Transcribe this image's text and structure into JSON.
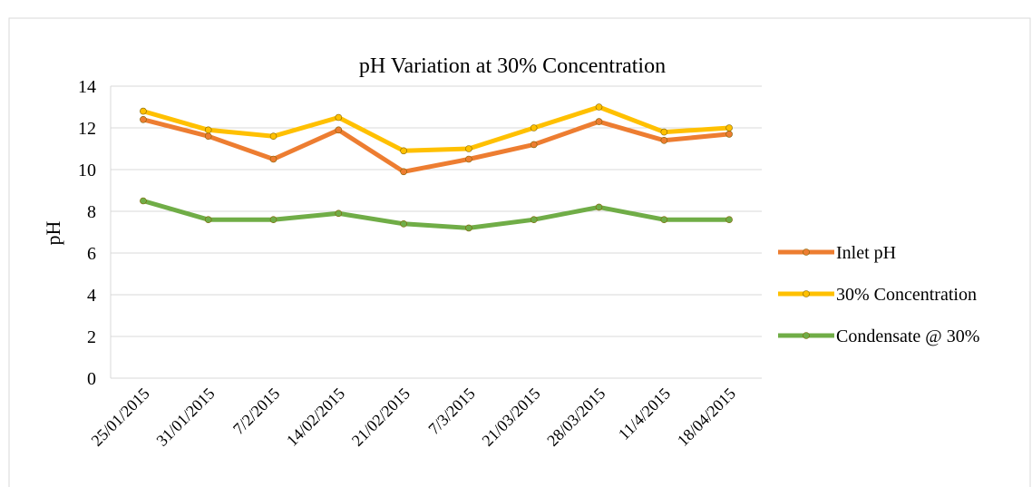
{
  "chart_data": {
    "type": "line",
    "title": "pH Variation at 30% Concentration",
    "y_label": "pH",
    "categories": [
      "25/01/2015",
      "31/01/2015",
      "7/2/2015",
      "14/02/2015",
      "21/02/2015",
      "7/3/2015",
      "21/03/2015",
      "28/03/2015",
      "11/4/2015",
      "18/04/2015"
    ],
    "series": [
      {
        "name": "Inlet pH",
        "color": "#ED7D31",
        "values": [
          12.4,
          11.6,
          10.5,
          11.9,
          9.9,
          10.5,
          11.2,
          12.3,
          11.4,
          11.7
        ]
      },
      {
        "name": "30% Concentration",
        "color": "#FFC000",
        "values": [
          12.8,
          11.9,
          11.6,
          12.5,
          10.9,
          11.0,
          12.0,
          13.0,
          11.8,
          12.0
        ]
      },
      {
        "name": "Condensate @ 30%",
        "color": "#70AD47",
        "values": [
          8.5,
          7.6,
          7.6,
          7.9,
          7.4,
          7.2,
          7.6,
          8.2,
          7.6,
          7.6
        ]
      }
    ],
    "ylim": [
      0,
      14
    ],
    "yticks": [
      0,
      2,
      4,
      6,
      8,
      10,
      12,
      14
    ],
    "grid": true,
    "legend": "right"
  }
}
